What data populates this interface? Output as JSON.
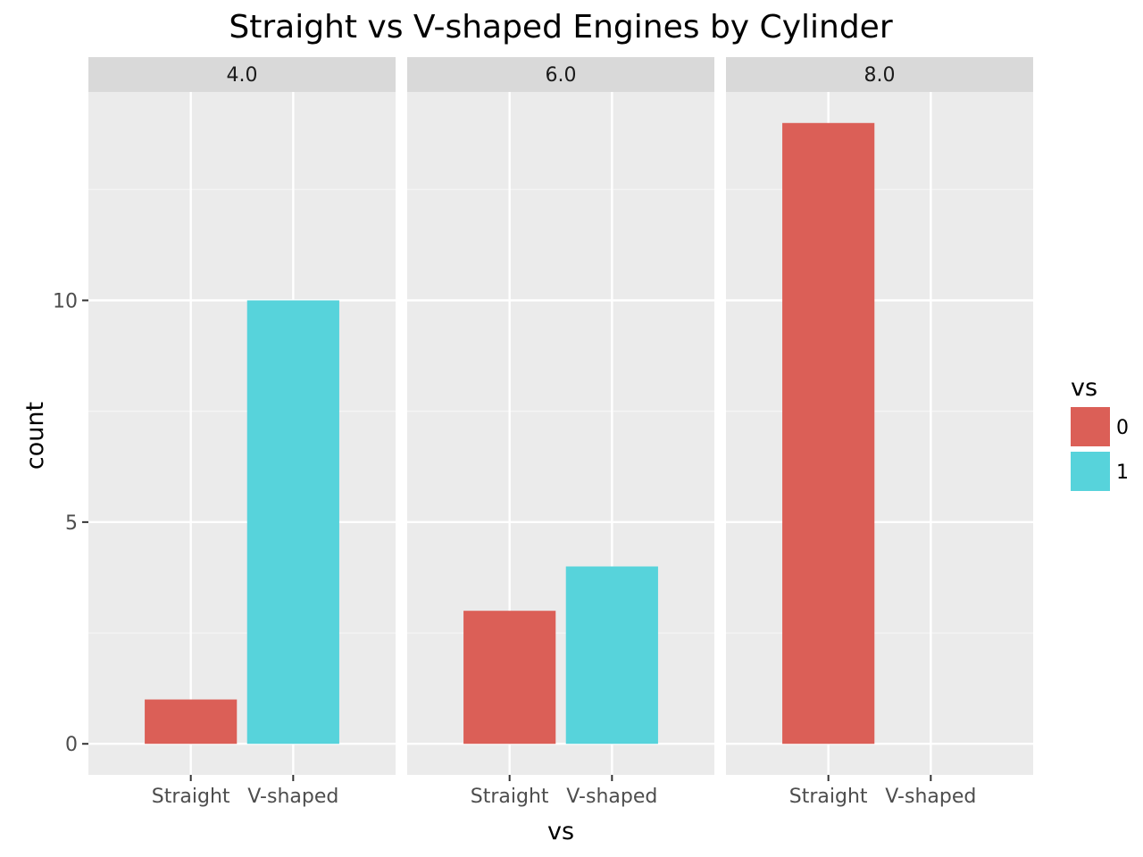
{
  "chart_data": {
    "type": "bar",
    "title": "Straight vs V-shaped Engines by Cylinder",
    "xlabel": "vs",
    "ylabel": "count",
    "categories": [
      "Straight",
      "V-shaped"
    ],
    "y_ticks": [
      "0",
      "5",
      "10"
    ],
    "y_tick_values": [
      0,
      5,
      10
    ],
    "ylim": [
      -0.7,
      14.7
    ],
    "grid": true,
    "legend": {
      "title": "vs",
      "position": "right",
      "entries": [
        {
          "label": "0",
          "color": "#DB5F57"
        },
        {
          "label": "1",
          "color": "#57D3DB"
        }
      ]
    },
    "facets": [
      {
        "label": "4.0",
        "bars": [
          {
            "category": "Straight",
            "fill_group": "0",
            "value": 1
          },
          {
            "category": "V-shaped",
            "fill_group": "1",
            "value": 10
          }
        ]
      },
      {
        "label": "6.0",
        "bars": [
          {
            "category": "Straight",
            "fill_group": "0",
            "value": 3
          },
          {
            "category": "V-shaped",
            "fill_group": "1",
            "value": 4
          }
        ]
      },
      {
        "label": "8.0",
        "bars": [
          {
            "category": "Straight",
            "fill_group": "0",
            "value": 14
          }
        ]
      }
    ]
  },
  "colors": {
    "panel_background": "#EBEBEB",
    "strip_background": "#D9D9D9",
    "grid_major": "#FFFFFF",
    "grid_minor": "#F5F5F5",
    "group_0": "#DB5F57",
    "group_1": "#57D3DB"
  }
}
